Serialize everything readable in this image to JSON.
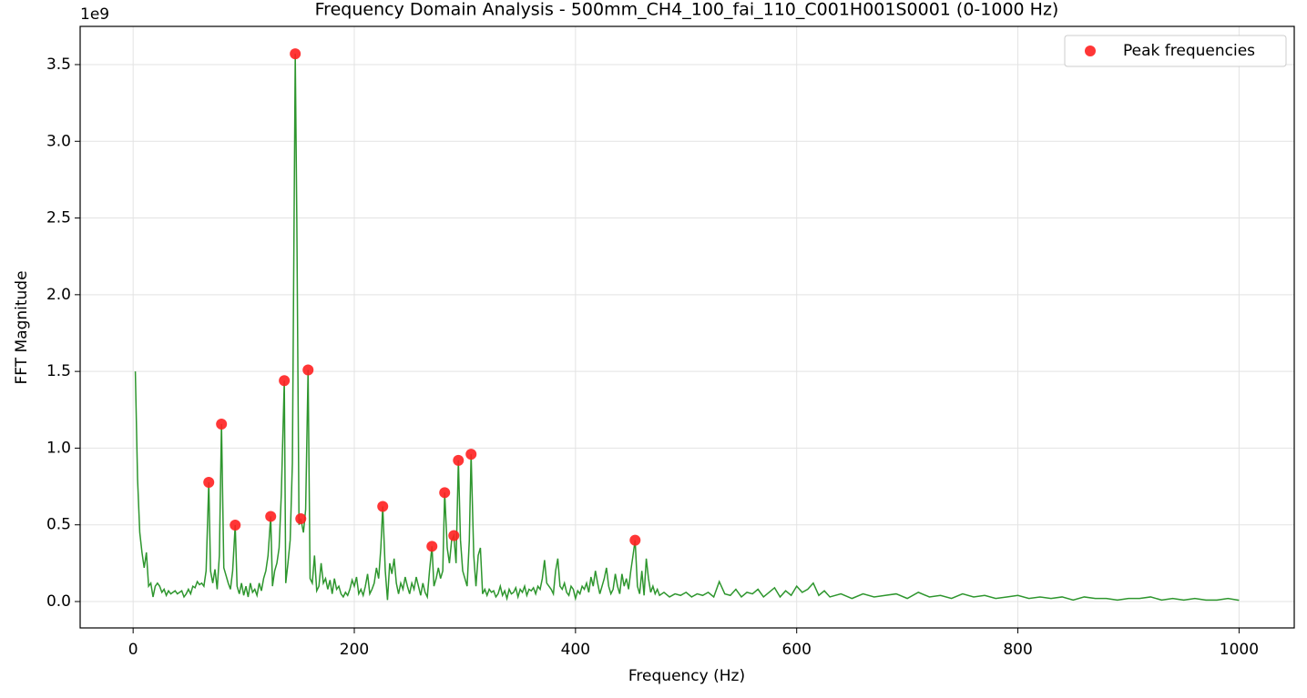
{
  "chart_data": {
    "type": "line",
    "title": "Frequency Domain Analysis - 500mm_CH4_100_fai_110_C001H001S0001 (0-1000 Hz)",
    "xlabel": "Frequency (Hz)",
    "ylabel": "FFT Magnitude",
    "y_offset_label": "1e9",
    "xlim": [
      -47.9,
      1049.9
    ],
    "ylim": [
      -0.172,
      3.749
    ],
    "xticks": [
      0,
      200,
      400,
      600,
      800,
      1000
    ],
    "yticks": [
      {
        "value": 0,
        "label": "0.0"
      },
      0.5,
      {
        "value": 1,
        "label": "1.0"
      },
      1.5,
      {
        "value": 2,
        "label": "2.0"
      },
      2.5,
      {
        "value": 3,
        "label": "3.0"
      },
      3.5
    ],
    "grid": true,
    "legend": "upper right",
    "series": [
      {
        "type": "line",
        "color": "#2e962e",
        "x": [
          2,
          4,
          6,
          8,
          10,
          12,
          14,
          16,
          18,
          20,
          22,
          24,
          26,
          28,
          30,
          32,
          34,
          36,
          38,
          40,
          42,
          44,
          46,
          48,
          50,
          52,
          54,
          56,
          58,
          60,
          62,
          64,
          66,
          68.4,
          70,
          72,
          74,
          76,
          78,
          79.9,
          82,
          84,
          86,
          88,
          90,
          92.3,
          94,
          96,
          98,
          100,
          102,
          104,
          106,
          108,
          110,
          112,
          114,
          116,
          118,
          120,
          122,
          124.4,
          126,
          128,
          130,
          132,
          134,
          136.7,
          138,
          140,
          142,
          144,
          146.6,
          148,
          150,
          151.6,
          154,
          156,
          158.2,
          160,
          162,
          164,
          166,
          168,
          170,
          172,
          174,
          176,
          178,
          180,
          182,
          184,
          186,
          188,
          190,
          192,
          194,
          196,
          198,
          200,
          202,
          204,
          206,
          208,
          210,
          212,
          214,
          216,
          218,
          220,
          222,
          224,
          225.7,
          228,
          230,
          232,
          234,
          236,
          238,
          240,
          242,
          244,
          246,
          248,
          250,
          252,
          254,
          256,
          258,
          260,
          262,
          264,
          266,
          268,
          270.2,
          272,
          274,
          276,
          278,
          280,
          281.7,
          284,
          286,
          288,
          290,
          292,
          294.1,
          296,
          298,
          300,
          302,
          304,
          305.6,
          308,
          310,
          312,
          314,
          316,
          318,
          320,
          322,
          324,
          326,
          328,
          330,
          332,
          334,
          336,
          338,
          340,
          342,
          344,
          346,
          348,
          350,
          352,
          354,
          356,
          358,
          360,
          362,
          364,
          366,
          368,
          370,
          372,
          374,
          376,
          378,
          380,
          382,
          384,
          386,
          388,
          390,
          392,
          394,
          396,
          398,
          400,
          402,
          404,
          406,
          408,
          410,
          412,
          414,
          416,
          418,
          420,
          422,
          424,
          426,
          428,
          430,
          432,
          434,
          436,
          438,
          440,
          442,
          444,
          446,
          448,
          450,
          452,
          453.9,
          456,
          458,
          460,
          462,
          464,
          466,
          468,
          470,
          472,
          474,
          476,
          480,
          485,
          490,
          495,
          500,
          505,
          510,
          515,
          520,
          525,
          530,
          535,
          540,
          545,
          550,
          555,
          560,
          565,
          570,
          575,
          580,
          585,
          590,
          595,
          600,
          605,
          610,
          615,
          620,
          625,
          630,
          640,
          650,
          660,
          670,
          680,
          690,
          700,
          710,
          720,
          730,
          740,
          750,
          760,
          770,
          780,
          790,
          800,
          810,
          820,
          830,
          840,
          850,
          860,
          870,
          880,
          890,
          900,
          910,
          920,
          930,
          940,
          950,
          960,
          970,
          980,
          990,
          1000
        ],
        "values": [
          1.5,
          0.8,
          0.45,
          0.32,
          0.22,
          0.32,
          0.1,
          0.12,
          0.03,
          0.1,
          0.12,
          0.1,
          0.06,
          0.08,
          0.04,
          0.07,
          0.05,
          0.06,
          0.07,
          0.05,
          0.06,
          0.07,
          0.03,
          0.05,
          0.08,
          0.05,
          0.1,
          0.09,
          0.13,
          0.11,
          0.12,
          0.1,
          0.2,
          0.777,
          0.2,
          0.12,
          0.21,
          0.08,
          0.3,
          1.157,
          0.22,
          0.17,
          0.12,
          0.08,
          0.2,
          0.498,
          0.1,
          0.05,
          0.12,
          0.04,
          0.1,
          0.03,
          0.12,
          0.06,
          0.08,
          0.04,
          0.12,
          0.07,
          0.15,
          0.2,
          0.3,
          0.555,
          0.1,
          0.2,
          0.25,
          0.35,
          0.7,
          1.44,
          0.12,
          0.25,
          0.4,
          0.9,
          3.57,
          2.5,
          0.5,
          0.54,
          0.45,
          0.6,
          1.51,
          0.15,
          0.12,
          0.3,
          0.07,
          0.1,
          0.25,
          0.12,
          0.15,
          0.08,
          0.14,
          0.05,
          0.15,
          0.08,
          0.1,
          0.05,
          0.03,
          0.06,
          0.04,
          0.08,
          0.14,
          0.1,
          0.16,
          0.05,
          0.08,
          0.04,
          0.1,
          0.18,
          0.05,
          0.08,
          0.12,
          0.22,
          0.15,
          0.35,
          0.62,
          0.2,
          0.01,
          0.25,
          0.18,
          0.28,
          0.12,
          0.05,
          0.12,
          0.08,
          0.16,
          0.1,
          0.05,
          0.12,
          0.08,
          0.16,
          0.1,
          0.04,
          0.12,
          0.06,
          0.03,
          0.2,
          0.36,
          0.1,
          0.15,
          0.22,
          0.15,
          0.2,
          0.71,
          0.35,
          0.25,
          0.4,
          0.43,
          0.25,
          0.92,
          0.4,
          0.2,
          0.15,
          0.1,
          0.4,
          0.96,
          0.3,
          0.1,
          0.3,
          0.35,
          0.05,
          0.08,
          0.04,
          0.08,
          0.06,
          0.07,
          0.03,
          0.05,
          0.1,
          0.04,
          0.07,
          0.02,
          0.08,
          0.05,
          0.06,
          0.09,
          0.03,
          0.08,
          0.06,
          0.1,
          0.04,
          0.08,
          0.07,
          0.09,
          0.05,
          0.1,
          0.08,
          0.15,
          0.27,
          0.12,
          0.1,
          0.08,
          0.05,
          0.2,
          0.28,
          0.1,
          0.08,
          0.12,
          0.06,
          0.04,
          0.1,
          0.08,
          0.02,
          0.07,
          0.05,
          0.1,
          0.08,
          0.12,
          0.06,
          0.16,
          0.1,
          0.2,
          0.12,
          0.05,
          0.1,
          0.15,
          0.22,
          0.1,
          0.05,
          0.08,
          0.18,
          0.1,
          0.05,
          0.18,
          0.1,
          0.15,
          0.08,
          0.2,
          0.3,
          0.4,
          0.1,
          0.05,
          0.2,
          0.04,
          0.28,
          0.15,
          0.06,
          0.1,
          0.05,
          0.08,
          0.04,
          0.06,
          0.03,
          0.05,
          0.04,
          0.06,
          0.03,
          0.05,
          0.04,
          0.06,
          0.03,
          0.13,
          0.05,
          0.04,
          0.08,
          0.03,
          0.06,
          0.05,
          0.08,
          0.03,
          0.06,
          0.09,
          0.03,
          0.07,
          0.04,
          0.1,
          0.06,
          0.08,
          0.12,
          0.04,
          0.07,
          0.03,
          0.05,
          0.02,
          0.05,
          0.03,
          0.04,
          0.05,
          0.02,
          0.06,
          0.03,
          0.04,
          0.02,
          0.05,
          0.03,
          0.04,
          0.02,
          0.03,
          0.04,
          0.02,
          0.03,
          0.02,
          0.03,
          0.01,
          0.03,
          0.02,
          0.02,
          0.01,
          0.02,
          0.02,
          0.03,
          0.01,
          0.02,
          0.01,
          0.02,
          0.01,
          0.01,
          0.02,
          0.008
        ]
      },
      {
        "type": "scatter",
        "name": "Peak frequencies",
        "color": "#ff2020",
        "x": [
          68.4,
          79.9,
          92.3,
          124.4,
          136.7,
          146.6,
          151.6,
          158.2,
          225.7,
          270.2,
          281.7,
          290,
          294.1,
          305.6,
          453.9
        ],
        "values": [
          0.777,
          1.157,
          0.498,
          0.555,
          1.44,
          3.57,
          0.54,
          1.51,
          0.62,
          0.36,
          0.71,
          0.43,
          0.92,
          0.96,
          0.4
        ]
      }
    ]
  }
}
